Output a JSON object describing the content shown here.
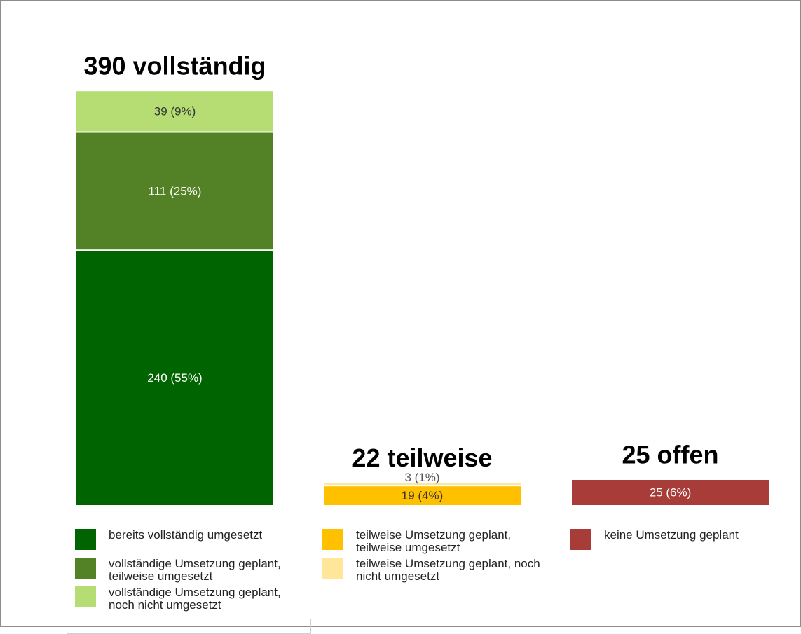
{
  "chart_data": {
    "type": "stacked_bar",
    "categories": [
      "390 vollständig",
      "22 teilweise",
      "25 offen"
    ],
    "series": [
      {
        "name": "bereits vollständig umgesetzt",
        "color": "#006400",
        "values": [
          240,
          null,
          null
        ],
        "value_labels": [
          "240 (55%)",
          null,
          null
        ]
      },
      {
        "name": "vollständige Umsetzung geplant, teilweise umgesetzt",
        "color": "#538226",
        "values": [
          111,
          null,
          null
        ],
        "value_labels": [
          "111 (25%)",
          null,
          null
        ]
      },
      {
        "name": "vollständige Umsetzung geplant, noch nicht umgesetzt",
        "color": "#b5dd74",
        "values": [
          39,
          null,
          null
        ],
        "value_labels": [
          "39 (9%)",
          null,
          null
        ]
      },
      {
        "name": "teilweise Umsetzung geplant, teilweise umgesetzt",
        "color": "#ffc000",
        "values": [
          null,
          19,
          null
        ],
        "value_labels": [
          null,
          "19 (4%)",
          null
        ]
      },
      {
        "name": "teilweise Umsetzung geplant, noch nicht umgesetzt",
        "color": "#ffe699",
        "values": [
          null,
          3,
          null
        ],
        "value_labels": [
          null,
          "3 (1%)",
          null
        ]
      },
      {
        "name": "keine Umsetzung geplant",
        "color": "#a83c38",
        "values": [
          null,
          null,
          25
        ],
        "value_labels": [
          null,
          null,
          "25 (6%)"
        ]
      }
    ]
  }
}
